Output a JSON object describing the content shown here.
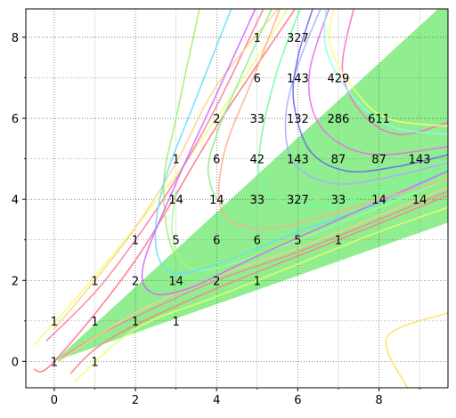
{
  "chart_data": {
    "type": "line",
    "title": "",
    "xlabel": "",
    "ylabel": "",
    "xlim": [
      -0.7,
      9.7
    ],
    "ylim": [
      -0.65,
      8.7
    ],
    "xticks": [
      0,
      2,
      4,
      6,
      8
    ],
    "yticks": [
      0,
      2,
      4,
      6,
      8
    ],
    "grid": true,
    "grid_style": "dotted",
    "fill_color": "#90ee90",
    "band": {
      "lower_slope": 0.353,
      "upper_slope": 0.92,
      "apex": [
        0,
        0
      ]
    },
    "series": [
      {
        "color": "#ff6f7f",
        "points": [
          [
            -0.5,
            -0.2
          ],
          [
            0,
            0
          ],
          [
            2,
            2.5
          ],
          [
            4,
            5.8
          ],
          [
            6,
            8.8
          ]
        ]
      },
      {
        "color": "#eeff66",
        "points": [
          [
            -0.5,
            0.4
          ],
          [
            1,
            2.1
          ],
          [
            3,
            4.6
          ],
          [
            5,
            7.5
          ],
          [
            5.8,
            8.8
          ]
        ]
      },
      {
        "color": "#eeff66",
        "points": [
          [
            0.5,
            -0.5
          ],
          [
            2,
            0.8
          ],
          [
            4,
            1.6
          ],
          [
            6,
            2.4
          ],
          [
            8,
            3.2
          ],
          [
            9.7,
            3.8
          ]
        ]
      },
      {
        "color": "#ff7f80",
        "points": [
          [
            0.4,
            -0.3
          ],
          [
            1,
            0.3
          ],
          [
            2,
            0.9
          ],
          [
            4,
            1.8
          ],
          [
            6,
            2.6
          ],
          [
            8,
            3.4
          ],
          [
            9.7,
            4.1
          ]
        ]
      },
      {
        "color": "#ff8099",
        "points": [
          [
            0.2,
            0.1
          ],
          [
            1,
            0.6
          ],
          [
            2,
            1.1
          ],
          [
            4,
            2
          ],
          [
            6,
            2.7
          ],
          [
            8,
            3.5
          ],
          [
            9.7,
            4.2
          ]
        ]
      },
      {
        "color": "#ffcc88",
        "points": [
          [
            0.1,
            0
          ],
          [
            2,
            1.2
          ],
          [
            4,
            2.1
          ],
          [
            6,
            2.8
          ],
          [
            8,
            3.6
          ],
          [
            9.7,
            4.3
          ]
        ]
      },
      {
        "color": "#ff7799",
        "points": [
          [
            -0.2,
            0.5
          ],
          [
            1,
            1.7
          ],
          [
            2,
            3
          ],
          [
            3,
            4.5
          ],
          [
            4,
            6.3
          ],
          [
            5.2,
            8.8
          ]
        ]
      },
      {
        "color": "#ffd07f",
        "points": [
          [
            0,
            0.8
          ],
          [
            1,
            2
          ],
          [
            2,
            3.3
          ],
          [
            3,
            4.9
          ],
          [
            4,
            6.8
          ],
          [
            5.6,
            8.8
          ]
        ]
      },
      {
        "color": "#ffdd55",
        "points": [
          [
            8.7,
            -0.65
          ],
          [
            8.2,
            0.6
          ],
          [
            9.7,
            1.2
          ]
        ]
      },
      {
        "color": "#99ff99",
        "points": [
          [
            3,
            4.2
          ],
          [
            2.9,
            3.2
          ],
          [
            3.2,
            2.4
          ],
          [
            4,
            2.3
          ],
          [
            6,
            3
          ],
          [
            8,
            3.8
          ],
          [
            9.7,
            4.5
          ]
        ]
      },
      {
        "color": "#a0ee66",
        "points": [
          [
            3.6,
            8.8
          ],
          [
            3,
            6
          ],
          [
            2.7,
            4.4
          ],
          [
            2.9,
            2.8
          ],
          [
            3.6,
            2.4
          ],
          [
            5,
            2.7
          ],
          [
            7,
            3.5
          ],
          [
            9.7,
            4.6
          ]
        ]
      },
      {
        "color": "#66ddff",
        "points": [
          [
            4.4,
            8.8
          ],
          [
            3.5,
            6.5
          ],
          [
            2.7,
            4.4
          ],
          [
            2.5,
            2.9
          ],
          [
            2.9,
            2.2
          ],
          [
            4,
            2.4
          ],
          [
            6,
            3.2
          ],
          [
            8,
            3.9
          ],
          [
            9.7,
            4.7
          ]
        ]
      },
      {
        "color": "#cc66ff",
        "points": [
          [
            5,
            8.8
          ],
          [
            4,
            6.6
          ],
          [
            3,
            4.4
          ],
          [
            2.2,
            2.4
          ],
          [
            2.4,
            1.7
          ],
          [
            3.3,
            1.8
          ],
          [
            5,
            2.6
          ],
          [
            7,
            3.5
          ],
          [
            9.7,
            4.7
          ]
        ]
      },
      {
        "color": "#88ee88",
        "points": [
          [
            5.4,
            8.8
          ],
          [
            4.5,
            6.8
          ],
          [
            4,
            5.6
          ],
          [
            3.8,
            4.6
          ],
          [
            4.3,
            3.8
          ],
          [
            6,
            3.9
          ],
          [
            8,
            4.4
          ],
          [
            9.7,
            4.8
          ]
        ]
      },
      {
        "color": "#ffaa88",
        "points": [
          [
            5.6,
            8.8
          ],
          [
            4.9,
            7
          ],
          [
            4.2,
            5.2
          ],
          [
            4.1,
            3.8
          ],
          [
            4.8,
            3.3
          ],
          [
            6,
            3.4
          ],
          [
            8,
            4
          ],
          [
            9.7,
            4.5
          ]
        ]
      },
      {
        "color": "#66ff99",
        "points": [
          [
            6.1,
            8.8
          ],
          [
            5.5,
            7.2
          ],
          [
            5.1,
            5.5
          ],
          [
            5.1,
            4.4
          ],
          [
            5.8,
            3.9
          ],
          [
            7,
            3.9
          ],
          [
            9.7,
            4.8
          ]
        ]
      },
      {
        "color": "#aaaaff",
        "points": [
          [
            6.6,
            8.8
          ],
          [
            6,
            7.3
          ],
          [
            5.7,
            6
          ],
          [
            5.9,
            4.9
          ],
          [
            6.8,
            4.4
          ],
          [
            8,
            4.5
          ],
          [
            9.7,
            4.9
          ]
        ]
      },
      {
        "color": "#6666ee",
        "points": [
          [
            6.4,
            8.8
          ],
          [
            6,
            7.5
          ],
          [
            5.9,
            6.4
          ],
          [
            6.3,
            5.2
          ],
          [
            7.2,
            4.7
          ],
          [
            8.4,
            4.8
          ],
          [
            9.7,
            5.1
          ]
        ]
      },
      {
        "color": "#ee66ee",
        "points": [
          [
            6.8,
            8.8
          ],
          [
            6.3,
            7.2
          ],
          [
            6.4,
            6.1
          ],
          [
            7,
            5.4
          ],
          [
            8,
            5.1
          ],
          [
            9.7,
            5.3
          ]
        ]
      },
      {
        "color": "#ff66cc",
        "points": [
          [
            7.4,
            8.8
          ],
          [
            7.1,
            7.2
          ],
          [
            7.6,
            6.1
          ],
          [
            8.5,
            5.6
          ],
          [
            9.7,
            5.9
          ]
        ]
      },
      {
        "color": "#ffff66",
        "points": [
          [
            6.9,
            8.8
          ],
          [
            6.8,
            7.8
          ],
          [
            7.4,
            6.7
          ],
          [
            8.2,
            6
          ],
          [
            9.7,
            5.8
          ]
        ]
      },
      {
        "color": "#88ffee",
        "points": [
          [
            6.7,
            8.8
          ],
          [
            6.7,
            7.7
          ],
          [
            7.3,
            6.6
          ],
          [
            8.3,
            5.8
          ],
          [
            9.7,
            5.6
          ]
        ]
      }
    ],
    "annotations": [
      {
        "x": 0,
        "y": 1,
        "text": "1"
      },
      {
        "x": 0,
        "y": 0,
        "text": "1"
      },
      {
        "x": 1,
        "y": 2,
        "text": "1"
      },
      {
        "x": 1,
        "y": 1,
        "text": "1"
      },
      {
        "x": 1,
        "y": 0,
        "text": "1"
      },
      {
        "x": 2,
        "y": 3,
        "text": "1"
      },
      {
        "x": 2,
        "y": 2,
        "text": "2"
      },
      {
        "x": 2,
        "y": 1,
        "text": "1"
      },
      {
        "x": 3,
        "y": 5,
        "text": "1"
      },
      {
        "x": 3,
        "y": 4,
        "text": "14"
      },
      {
        "x": 3,
        "y": 3,
        "text": "5"
      },
      {
        "x": 3,
        "y": 2,
        "text": "14"
      },
      {
        "x": 3,
        "y": 1,
        "text": "1"
      },
      {
        "x": 4,
        "y": 6,
        "text": "2"
      },
      {
        "x": 4,
        "y": 5,
        "text": "6"
      },
      {
        "x": 4,
        "y": 4,
        "text": "14"
      },
      {
        "x": 4,
        "y": 3,
        "text": "6"
      },
      {
        "x": 4,
        "y": 2,
        "text": "2"
      },
      {
        "x": 5,
        "y": 8,
        "text": "1"
      },
      {
        "x": 5,
        "y": 7,
        "text": "6"
      },
      {
        "x": 5,
        "y": 6,
        "text": "33"
      },
      {
        "x": 5,
        "y": 5,
        "text": "42"
      },
      {
        "x": 5,
        "y": 4,
        "text": "33"
      },
      {
        "x": 5,
        "y": 3,
        "text": "6"
      },
      {
        "x": 5,
        "y": 2,
        "text": "1"
      },
      {
        "x": 6,
        "y": 8,
        "text": "327"
      },
      {
        "x": 6,
        "y": 7,
        "text": "143"
      },
      {
        "x": 6,
        "y": 6,
        "text": "132"
      },
      {
        "x": 6,
        "y": 5,
        "text": "143"
      },
      {
        "x": 6,
        "y": 4,
        "text": "327"
      },
      {
        "x": 6,
        "y": 3,
        "text": "5"
      },
      {
        "x": 7,
        "y": 7,
        "text": "429"
      },
      {
        "x": 7,
        "y": 6,
        "text": "286"
      },
      {
        "x": 7,
        "y": 5,
        "text": "87"
      },
      {
        "x": 7,
        "y": 4,
        "text": "33"
      },
      {
        "x": 7,
        "y": 3,
        "text": "1"
      },
      {
        "x": 8,
        "y": 6,
        "text": "611"
      },
      {
        "x": 8,
        "y": 5,
        "text": "87"
      },
      {
        "x": 8,
        "y": 4,
        "text": "14"
      },
      {
        "x": 9,
        "y": 5,
        "text": "143"
      },
      {
        "x": 9,
        "y": 4,
        "text": "14"
      }
    ]
  }
}
